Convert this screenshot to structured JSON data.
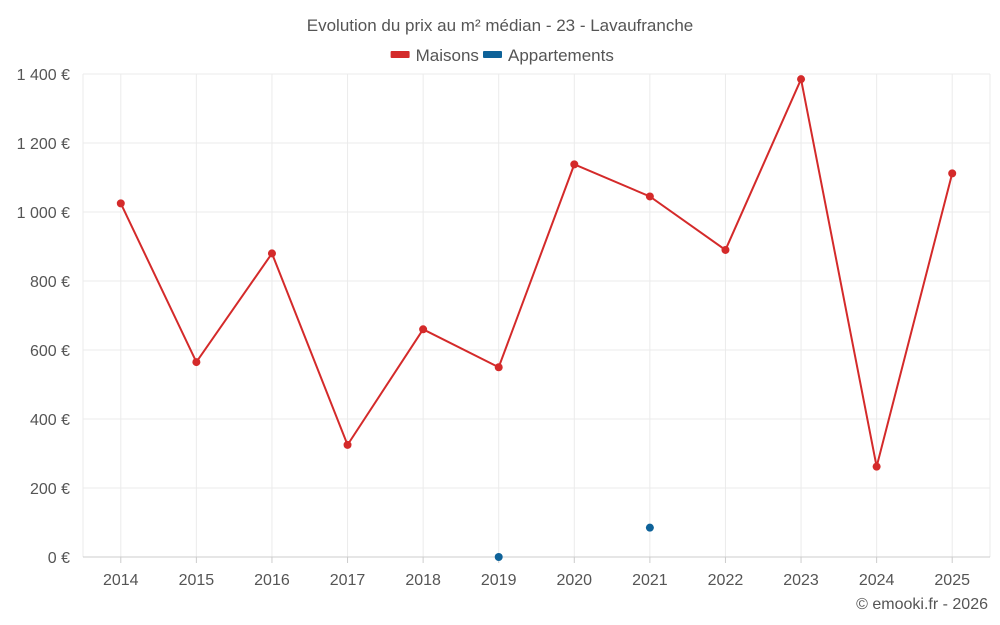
{
  "chart_data": {
    "type": "line",
    "title": "Evolution du prix au m² médian - 23 - Lavaufranche",
    "categories": [
      "2014",
      "2015",
      "2016",
      "2017",
      "2018",
      "2019",
      "2020",
      "2021",
      "2022",
      "2023",
      "2024",
      "2025"
    ],
    "series": [
      {
        "name": "Maisons",
        "color": "#d42a2a",
        "values": [
          1025,
          565,
          880,
          325,
          660,
          550,
          1138,
          1045,
          890,
          1385,
          262,
          1112
        ]
      },
      {
        "name": "Appartements",
        "color": "#0e6299",
        "values": [
          null,
          null,
          null,
          null,
          null,
          0,
          null,
          85,
          null,
          null,
          null,
          null
        ]
      }
    ],
    "ylim": [
      0,
      1400
    ],
    "yticks": [
      0,
      200,
      400,
      600,
      800,
      1000,
      1200,
      1400
    ],
    "ytick_labels": [
      "0 €",
      "200 €",
      "400 €",
      "600 €",
      "800 €",
      "1 000 €",
      "1 200 €",
      "1 400 €"
    ],
    "xlabel": "",
    "ylabel": "",
    "grid": true,
    "legend_position": "top-center"
  },
  "credit": "© emooki.fr - 2026"
}
